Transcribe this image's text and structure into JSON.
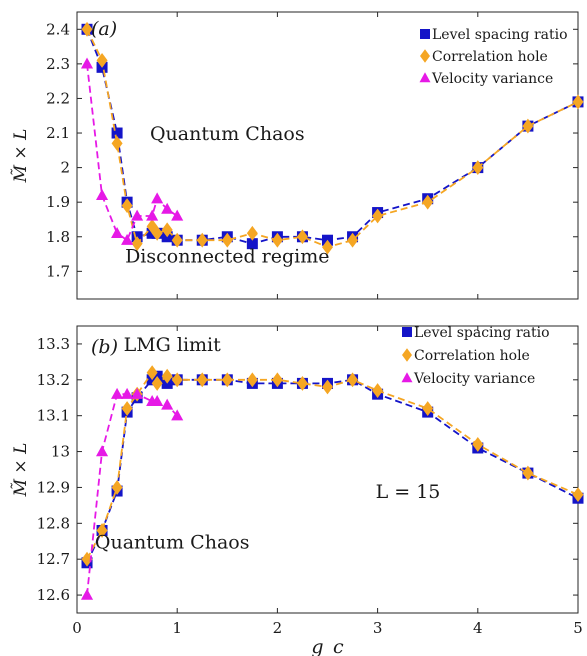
{
  "chart_data": [
    {
      "type": "line",
      "panel_label": "(a)",
      "xlabel": "g_c",
      "ylabel": "M̃ × L",
      "xlim": [
        0,
        5
      ],
      "ylim": [
        1.62,
        2.45
      ],
      "xticks": [
        0,
        1,
        2,
        3,
        4,
        5
      ],
      "yticks": [
        1.7,
        1.8,
        1.9,
        2.0,
        2.1,
        2.2,
        2.3,
        2.4
      ],
      "ytick_labels": [
        "1.7",
        "1.8",
        "1.9",
        "2",
        "2.1",
        "2.2",
        "2.3",
        "2.4"
      ],
      "show_x_tick_labels": false,
      "legend_position": "top-right",
      "annotations": [
        {
          "text": "Quantum Chaos",
          "x": 1.5,
          "y": 2.08
        },
        {
          "text": "Disconnected regime",
          "x": 1.5,
          "y": 1.725
        }
      ],
      "series": [
        {
          "name": "Level spacing ratio",
          "color": "#1414c8",
          "marker": "square",
          "x": [
            0.1,
            0.25,
            0.4,
            0.5,
            0.6,
            0.75,
            0.8,
            0.9,
            1.0,
            1.25,
            1.5,
            1.75,
            2.0,
            2.25,
            2.5,
            2.75,
            3.0,
            3.5,
            4.0,
            4.5,
            5.0
          ],
          "values": [
            2.4,
            2.29,
            2.1,
            1.9,
            1.8,
            1.81,
            1.81,
            1.8,
            1.79,
            1.79,
            1.8,
            1.78,
            1.8,
            1.8,
            1.79,
            1.8,
            1.87,
            1.91,
            2.0,
            2.12,
            2.19
          ]
        },
        {
          "name": "Correlation hole",
          "color": "#f5a623",
          "marker": "diamond",
          "x": [
            0.1,
            0.25,
            0.4,
            0.5,
            0.6,
            0.75,
            0.8,
            0.9,
            1.0,
            1.25,
            1.5,
            1.75,
            2.0,
            2.25,
            2.5,
            2.75,
            3.0,
            3.5,
            4.0,
            4.5,
            5.0
          ],
          "values": [
            2.4,
            2.31,
            2.07,
            1.89,
            1.78,
            1.83,
            1.81,
            1.82,
            1.79,
            1.79,
            1.79,
            1.81,
            1.79,
            1.8,
            1.77,
            1.79,
            1.86,
            1.9,
            2.0,
            2.12,
            2.19
          ]
        },
        {
          "name": "Velocity variance",
          "color": "#e619e6",
          "marker": "triangle",
          "x": [
            0.1,
            0.25,
            0.4,
            0.5,
            0.6,
            0.75,
            0.8,
            0.9,
            1.0
          ],
          "values": [
            2.3,
            1.92,
            1.81,
            1.79,
            1.86,
            1.86,
            1.91,
            1.88,
            1.86
          ]
        }
      ]
    },
    {
      "type": "line",
      "panel_label": "(b)",
      "xlabel": "g_c",
      "ylabel": "M̃ × L",
      "xlim": [
        0,
        5
      ],
      "ylim": [
        12.55,
        13.35
      ],
      "xticks": [
        0,
        1,
        2,
        3,
        4,
        5
      ],
      "yticks": [
        12.6,
        12.7,
        12.8,
        12.9,
        13.0,
        13.1,
        13.2,
        13.3
      ],
      "ytick_labels": [
        "12.6",
        "12.7",
        "12.8",
        "12.9",
        "13",
        "13.1",
        "13.2",
        "13.3"
      ],
      "show_x_tick_labels": true,
      "legend_position": "top-right",
      "annotations": [
        {
          "text": "LMG limit",
          "x": 0.95,
          "y": 13.28
        },
        {
          "text": "Quantum Chaos",
          "x": 0.95,
          "y": 12.73
        },
        {
          "text": "L = 15",
          "x": 2.98,
          "y": 12.87
        }
      ],
      "series": [
        {
          "name": "Level spacing ratio",
          "color": "#1414c8",
          "marker": "square",
          "x": [
            0.1,
            0.25,
            0.4,
            0.5,
            0.6,
            0.75,
            0.8,
            0.9,
            1.0,
            1.25,
            1.5,
            1.75,
            2.0,
            2.25,
            2.5,
            2.75,
            3.0,
            3.5,
            4.0,
            4.5,
            5.0
          ],
          "values": [
            12.69,
            12.78,
            12.89,
            13.11,
            13.15,
            13.2,
            13.21,
            13.19,
            13.2,
            13.2,
            13.2,
            13.19,
            13.19,
            13.19,
            13.19,
            13.2,
            13.16,
            13.11,
            13.01,
            12.94,
            12.87
          ]
        },
        {
          "name": "Correlation hole",
          "color": "#f5a623",
          "marker": "diamond",
          "x": [
            0.1,
            0.25,
            0.4,
            0.5,
            0.6,
            0.75,
            0.8,
            0.9,
            1.0,
            1.25,
            1.5,
            1.75,
            2.0,
            2.25,
            2.5,
            2.75,
            3.0,
            3.5,
            4.0,
            4.5,
            5.0
          ],
          "values": [
            12.7,
            12.78,
            12.9,
            13.12,
            13.16,
            13.22,
            13.19,
            13.21,
            13.2,
            13.2,
            13.2,
            13.2,
            13.2,
            13.19,
            13.18,
            13.2,
            13.17,
            13.12,
            13.02,
            12.94,
            12.88
          ]
        },
        {
          "name": "Velocity variance",
          "color": "#e619e6",
          "marker": "triangle",
          "x": [
            0.1,
            0.25,
            0.4,
            0.5,
            0.6,
            0.75,
            0.8,
            0.9,
            1.0
          ],
          "values": [
            12.6,
            13.0,
            13.16,
            13.16,
            13.16,
            13.14,
            13.14,
            13.13,
            13.1
          ]
        }
      ]
    }
  ]
}
